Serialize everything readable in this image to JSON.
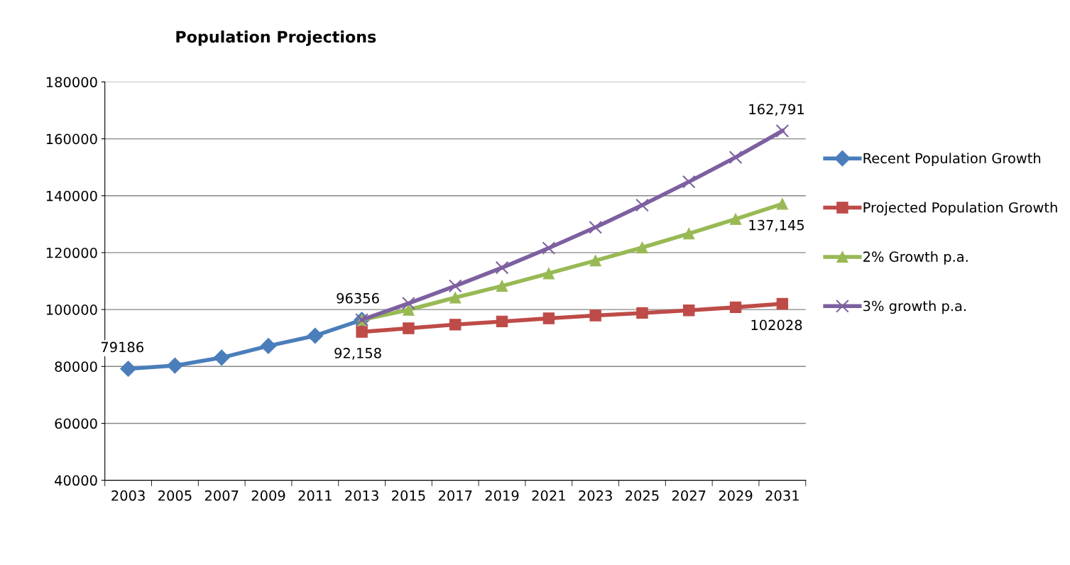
{
  "chart_data": {
    "type": "line",
    "title": "Population Projections",
    "categories": [
      "2003",
      "2005",
      "2007",
      "2009",
      "2011",
      "2013",
      "2015",
      "2017",
      "2019",
      "2021",
      "2023",
      "2025",
      "2027",
      "2029",
      "2031"
    ],
    "series": [
      {
        "name": "Recent Population Growth",
        "color": "#4a7ebb",
        "marker": "diamond",
        "values": [
          79186,
          80300,
          83100,
          87200,
          90800,
          96356,
          null,
          null,
          null,
          null,
          null,
          null,
          null,
          null,
          null
        ],
        "value_labels": [
          "79186",
          null,
          null,
          null,
          null,
          "96356",
          null,
          null,
          null,
          null,
          null,
          null,
          null,
          null,
          null
        ]
      },
      {
        "name": "Projected Population Growth",
        "color": "#be4b48",
        "marker": "square",
        "values": [
          null,
          null,
          null,
          null,
          null,
          92158,
          93400,
          94700,
          95800,
          96900,
          97900,
          98800,
          99700,
          100800,
          102028
        ],
        "value_labels": [
          null,
          null,
          null,
          null,
          null,
          "92,158",
          null,
          null,
          null,
          null,
          null,
          null,
          null,
          null,
          "102028"
        ]
      },
      {
        "name": "2% Growth p.a.",
        "color": "#98b954",
        "marker": "triangle",
        "values": [
          null,
          null,
          null,
          null,
          null,
          96400,
          99900,
          104200,
          108300,
          112700,
          117200,
          121800,
          126700,
          131800,
          137145
        ],
        "value_labels": [
          null,
          null,
          null,
          null,
          null,
          null,
          null,
          null,
          null,
          null,
          null,
          null,
          null,
          null,
          "137,145"
        ]
      },
      {
        "name": "3% growth p.a.",
        "color": "#7d60a0",
        "marker": "cross",
        "values": [
          null,
          null,
          null,
          null,
          null,
          96400,
          102200,
          108300,
          114700,
          121600,
          128900,
          136700,
          144900,
          153500,
          162791
        ],
        "value_labels": [
          null,
          null,
          null,
          null,
          null,
          null,
          null,
          null,
          null,
          null,
          null,
          null,
          null,
          null,
          "162,791"
        ]
      }
    ],
    "ylim": [
      40000,
      180000
    ],
    "yticks": [
      40000,
      60000,
      80000,
      100000,
      120000,
      140000,
      160000,
      180000
    ],
    "grid": "y",
    "legend": "right",
    "line_style": "solid"
  }
}
